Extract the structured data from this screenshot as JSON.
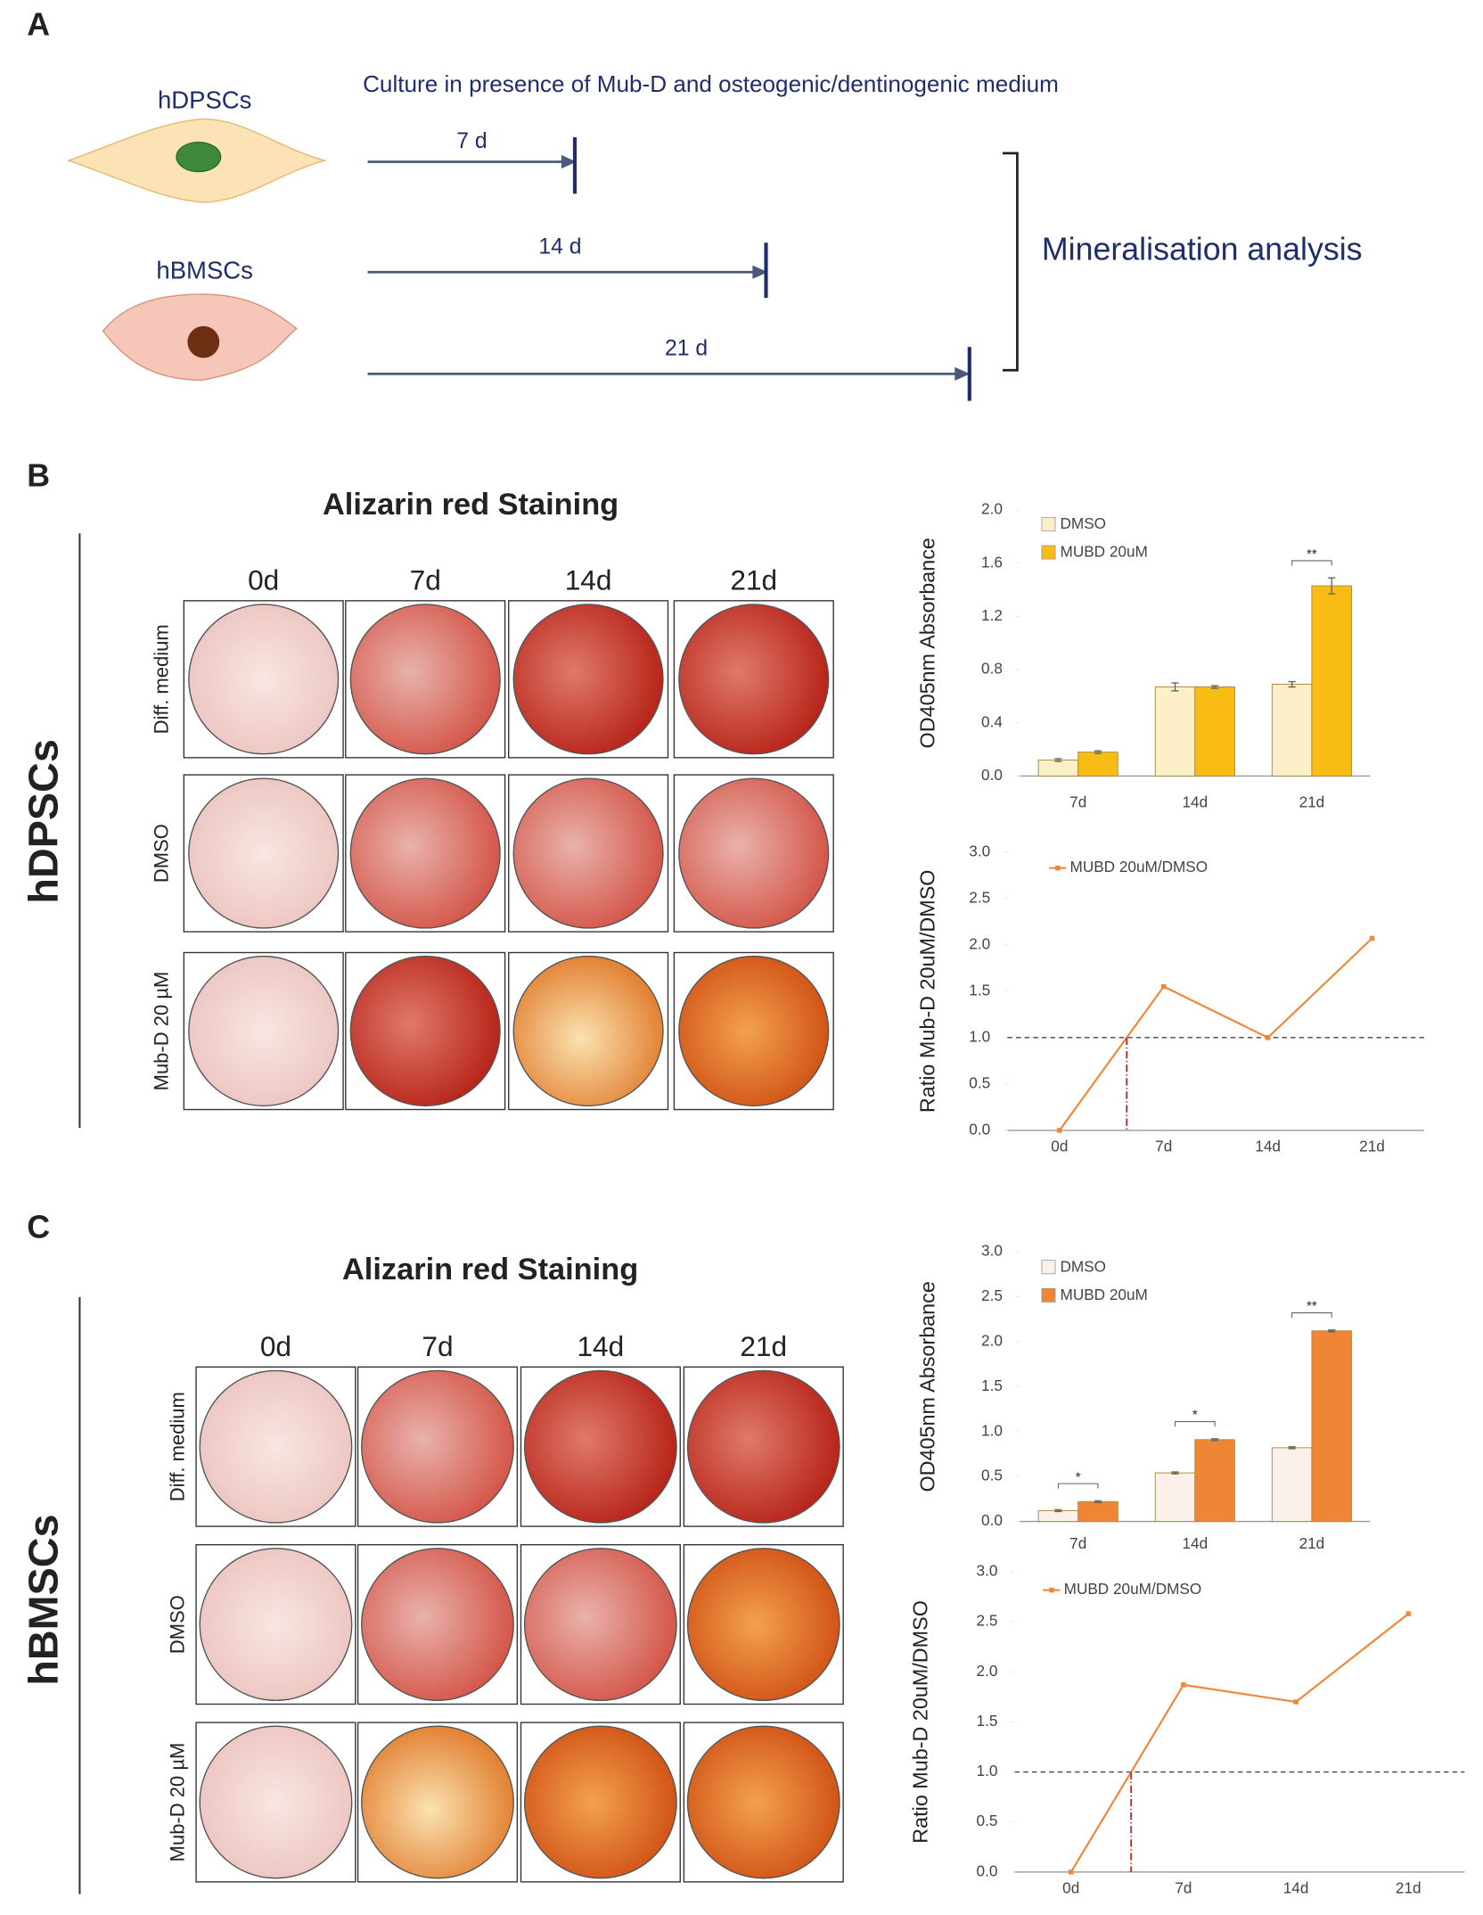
{
  "panel_a": {
    "label": "A",
    "cell_types": [
      "hDPSCs",
      "hBMSCs"
    ],
    "description": "Culture in presence of Mub-D and osteogenic/dentinogenic medium",
    "timepoints": [
      "7 d",
      "14 d",
      "21 d"
    ],
    "outcome": "Mineralisation analysis"
  },
  "panel_b": {
    "label": "B",
    "title": "Alizarin red Staining",
    "columns": [
      "0d",
      "7d",
      "14d",
      "21d"
    ],
    "rows": [
      "Diff. medium",
      "DMSO",
      "Mub-D 20 µM"
    ],
    "cell_type": "hDPSCs"
  },
  "panel_c": {
    "label": "C",
    "title": "Alizarin red Staining",
    "columns": [
      "0d",
      "7d",
      "14d",
      "21d"
    ],
    "rows": [
      "Diff. medium",
      "DMSO",
      "Mub-D 20 µM"
    ],
    "cell_type": "hBMSCs"
  },
  "chart_data": [
    {
      "type": "bar",
      "y_label": "OD405nm Absorbance",
      "categories": [
        "7d",
        "14d",
        "21d"
      ],
      "series": [
        {
          "name": "DMSO",
          "color": "#fdf0c8",
          "values": [
            0.12,
            0.67,
            0.69
          ],
          "errors": [
            0.01,
            0.03,
            0.02
          ]
        },
        {
          "name": "MUBD 20uM",
          "color": "#f9bc15",
          "values": [
            0.18,
            0.67,
            1.43
          ],
          "errors": [
            0.01,
            0.01,
            0.06
          ]
        }
      ],
      "significance": [
        null,
        null,
        "**"
      ],
      "ylim": [
        0,
        2
      ],
      "yticks": [
        {
          "value": 0,
          "label": "0.0"
        },
        0.4,
        0.8,
        1.2,
        1.6,
        {
          "value": 2,
          "label": "2.0"
        }
      ]
    },
    {
      "type": "line",
      "y_label": "Ratio Mub-D 20uM/DMSO",
      "categories": [
        "0d",
        "7d",
        "14d",
        "21d"
      ],
      "series": [
        {
          "name": "MUBD 20uM/DMSO",
          "color": "#f0883a",
          "values": [
            0,
            1.55,
            1.0,
            2.07
          ]
        }
      ],
      "reference_line": 1,
      "ylim": [
        0,
        3
      ],
      "yticks": [
        {
          "value": 0,
          "label": "0.0"
        },
        0.5,
        {
          "value": 1,
          "label": "1.0"
        },
        1.5,
        {
          "value": 2,
          "label": "2.0"
        },
        2.5,
        {
          "value": 3,
          "label": "3.0"
        }
      ]
    },
    {
      "type": "bar",
      "y_label": "OD405nm Absorbance",
      "categories": [
        "7d",
        "14d",
        "21d"
      ],
      "series": [
        {
          "name": "DMSO",
          "color": "#fbf1ea",
          "values": [
            0.12,
            0.54,
            0.82
          ],
          "errors": [
            0.01,
            0.01,
            0.01
          ]
        },
        {
          "name": "MUBD 20uM",
          "color": "#ef8535",
          "values": [
            0.22,
            0.91,
            2.12
          ],
          "errors": [
            0.01,
            0.01,
            0.01
          ]
        }
      ],
      "significance": [
        "*",
        "*",
        "**"
      ],
      "ylim": [
        0,
        3
      ],
      "yticks": [
        {
          "value": 0,
          "label": "0.0"
        },
        0.5,
        {
          "value": 1,
          "label": "1.0"
        },
        1.5,
        {
          "value": 2,
          "label": "2.0"
        },
        2.5,
        {
          "value": 3,
          "label": "3.0"
        }
      ]
    },
    {
      "type": "line",
      "y_label": "Ratio Mub-D 20uM/DMSO",
      "categories": [
        "0d",
        "7d",
        "14d",
        "21d"
      ],
      "series": [
        {
          "name": "MUBD 20uM/DMSO",
          "color": "#f0883a",
          "values": [
            0,
            1.87,
            1.7,
            2.58
          ]
        }
      ],
      "reference_line": 1,
      "ylim": [
        0,
        3
      ],
      "yticks": [
        {
          "value": 0,
          "label": "0.0"
        },
        0.5,
        {
          "value": 1,
          "label": "1.0"
        },
        1.5,
        {
          "value": 2,
          "label": "2.0"
        },
        2.5,
        {
          "value": 3,
          "label": "3.0"
        }
      ]
    }
  ]
}
